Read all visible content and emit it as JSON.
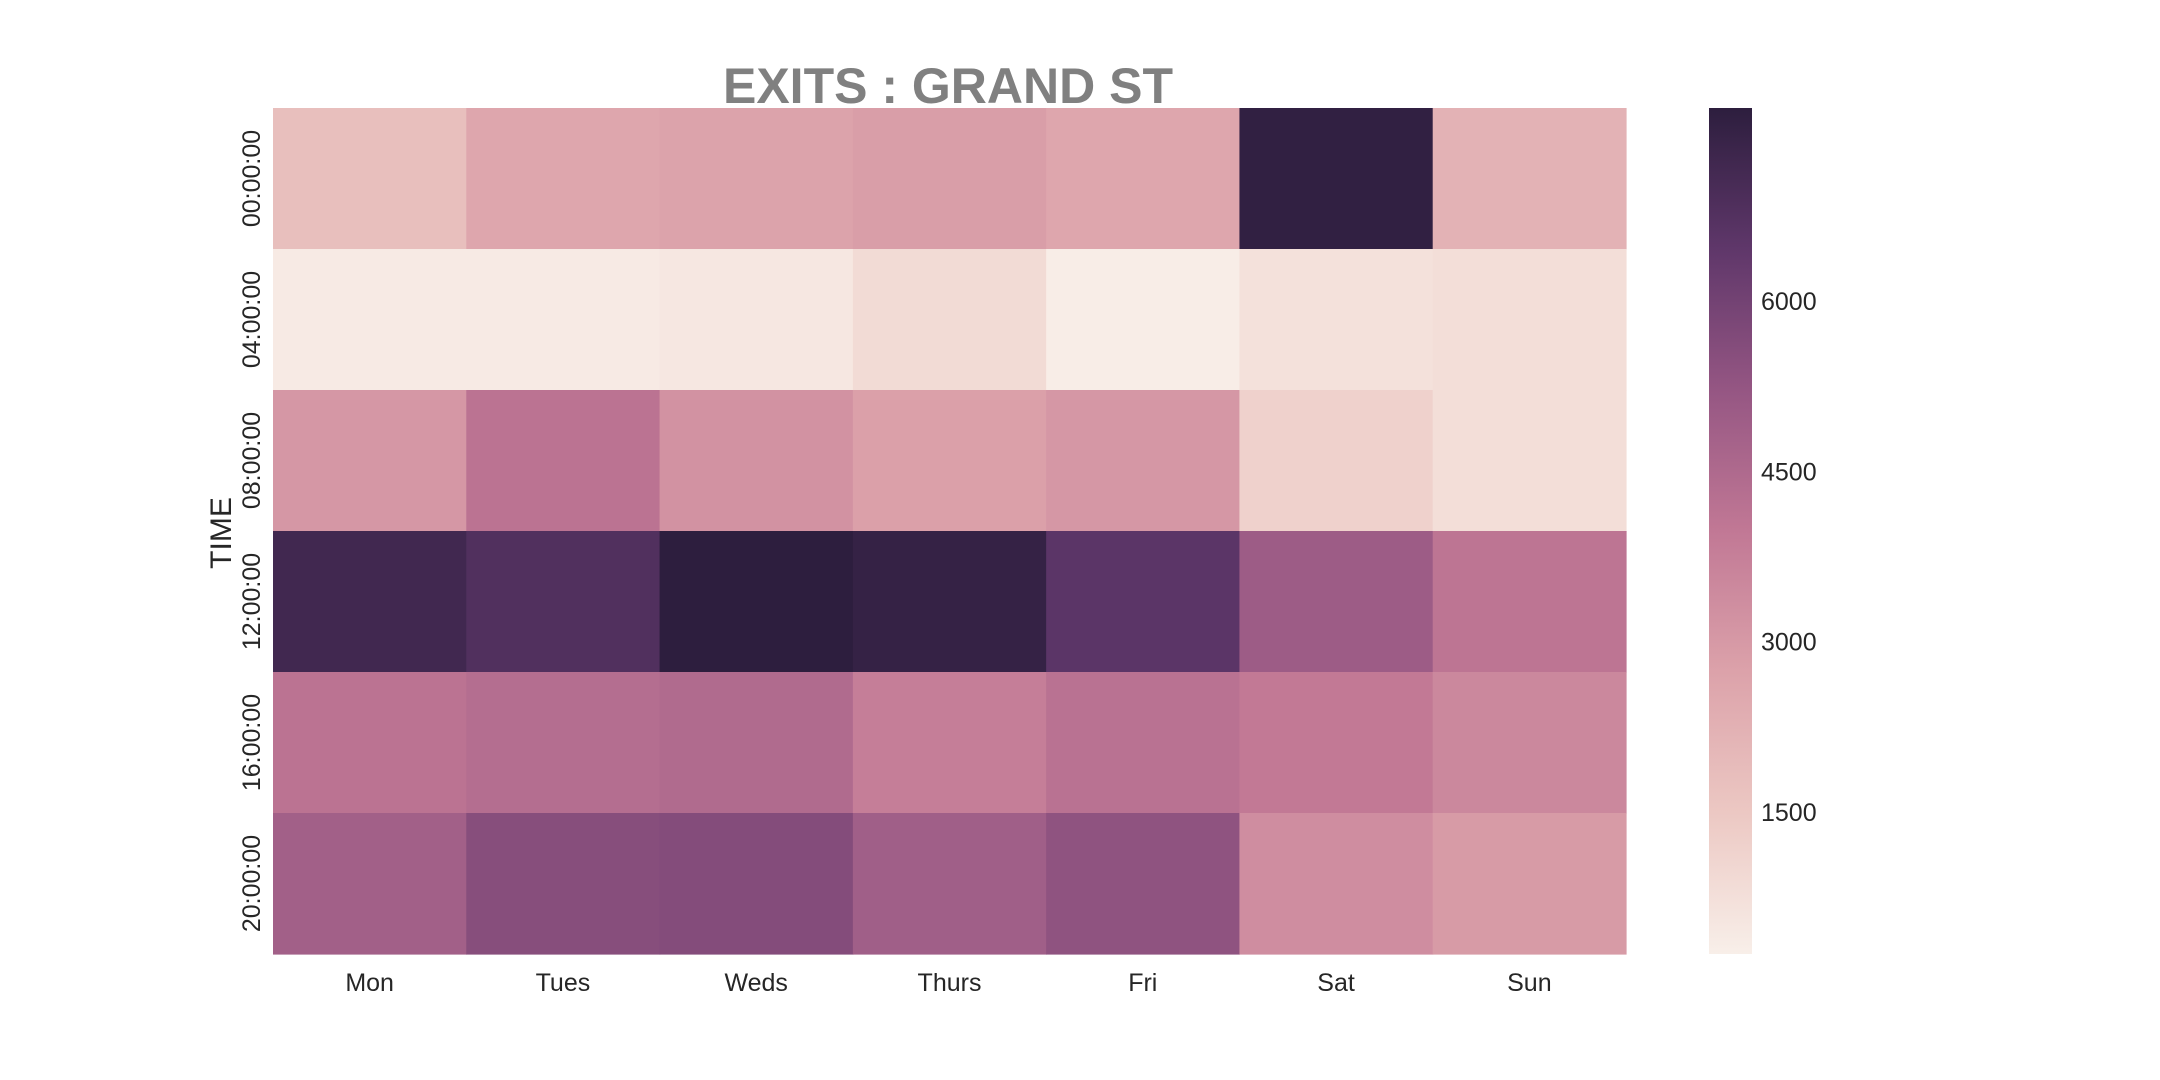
{
  "chart_data": {
    "type": "heatmap",
    "title": "EXITS : GRAND ST",
    "xlabel": "",
    "ylabel": "TIME",
    "columns": [
      "Mon",
      "Tues",
      "Weds",
      "Thurs",
      "Fri",
      "Sat",
      "Sun"
    ],
    "rows": [
      "00:00:00",
      "04:00:00",
      "08:00:00",
      "12:00:00",
      "16:00:00",
      "20:00:00"
    ],
    "values": [
      [
        1800,
        2600,
        2700,
        2850,
        2600,
        7600,
        2200
      ],
      [
        400,
        400,
        500,
        900,
        300,
        700,
        800
      ],
      [
        3050,
        4150,
        3200,
        2800,
        3050,
        1200,
        800
      ],
      [
        7200,
        6800,
        7700,
        7500,
        6550,
        5000,
        4100
      ],
      [
        4150,
        4350,
        4450,
        3800,
        4200,
        3950,
        3500
      ],
      [
        4850,
        5550,
        5600,
        4900,
        5350,
        3350,
        2950
      ]
    ],
    "colorbar": {
      "ticks": [
        1500,
        3000,
        4500,
        6000
      ],
      "range": [
        250,
        7700
      ]
    },
    "colormap": [
      "#f8efe9",
      "#ecc8c3",
      "#dca2aa",
      "#c17895",
      "#955683",
      "#5f376a",
      "#2d1e3e"
    ],
    "title_color": "#808080"
  }
}
